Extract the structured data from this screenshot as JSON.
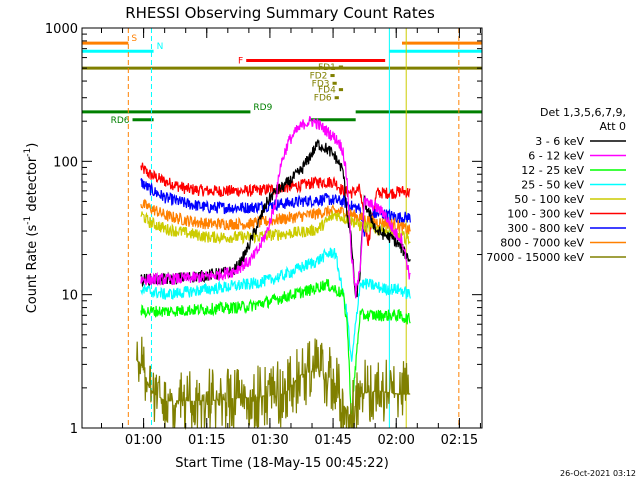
{
  "chart_data": {
    "type": "line",
    "title": "RHESSI Observing Summary Count Rates",
    "xlabel": "Start Time (18-May-15 00:45:22)",
    "ylabel_main": "Count Rate (s",
    "ylabel_sup1": "-1",
    "ylabel_mid": " detector",
    "ylabel_sup2": "-1",
    "ylabel_end": ")",
    "y_scale": "log",
    "ylim": [
      1,
      1000
    ],
    "xlim_minutes": [
      0,
      95
    ],
    "x_ticks": [
      {
        "minute": 14.63,
        "label": "01:00"
      },
      {
        "minute": 29.63,
        "label": "01:15"
      },
      {
        "minute": 44.63,
        "label": "01:30"
      },
      {
        "minute": 59.63,
        "label": "01:45"
      },
      {
        "minute": 74.63,
        "label": "02:00"
      },
      {
        "minute": 89.63,
        "label": "02:15"
      }
    ],
    "y_ticks": [
      {
        "value": 1,
        "label": "1"
      },
      {
        "value": 10,
        "label": "10"
      },
      {
        "value": 100,
        "label": "100"
      },
      {
        "value": 1000,
        "label": "1000"
      }
    ],
    "legend": {
      "placement": "right",
      "header": [
        "Det 1,3,5,6,7,9,",
        "Att 0"
      ],
      "entries": [
        {
          "label": "3 - 6 keV",
          "color": "#000000"
        },
        {
          "label": "6 - 12 keV",
          "color": "#ff00ff"
        },
        {
          "label": "12 - 25 keV",
          "color": "#00ff00"
        },
        {
          "label": "25 - 50 keV",
          "color": "#00ffff"
        },
        {
          "label": "50 - 100 keV",
          "color": "#cccc00"
        },
        {
          "label": "100 - 300 keV",
          "color": "#ff0000"
        },
        {
          "label": "300 - 800 keV",
          "color": "#0000ff"
        },
        {
          "label": "800 - 7000 keV",
          "color": "#ff8000"
        },
        {
          "label": "7000 - 15000 keV",
          "color": "#808000"
        }
      ]
    },
    "series": [
      {
        "color": "#ff0000",
        "points": [
          [
            14,
            90
          ],
          [
            16,
            80
          ],
          [
            20,
            70
          ],
          [
            25,
            62
          ],
          [
            30,
            60
          ],
          [
            40,
            60
          ],
          [
            45,
            62
          ],
          [
            52,
            66
          ],
          [
            56,
            70
          ],
          [
            60,
            70
          ],
          [
            62,
            60
          ],
          [
            64,
            58
          ],
          [
            66,
            62
          ],
          [
            67,
            35
          ],
          [
            68,
            25
          ],
          [
            70,
            58
          ],
          [
            74,
            58
          ],
          [
            76,
            60
          ],
          [
            78,
            58
          ]
        ]
      },
      {
        "color": "#0000ff",
        "points": [
          [
            14,
            70
          ],
          [
            16,
            62
          ],
          [
            20,
            53
          ],
          [
            25,
            48
          ],
          [
            30,
            45
          ],
          [
            40,
            45
          ],
          [
            45,
            47
          ],
          [
            52,
            50
          ],
          [
            58,
            52
          ],
          [
            62,
            50
          ],
          [
            64,
            46
          ],
          [
            66,
            44
          ],
          [
            67,
            30
          ],
          [
            69,
            40
          ],
          [
            72,
            40
          ],
          [
            75,
            38
          ],
          [
            78,
            38
          ]
        ]
      },
      {
        "color": "#ff8000",
        "points": [
          [
            14,
            48
          ],
          [
            16,
            45
          ],
          [
            20,
            39
          ],
          [
            25,
            36
          ],
          [
            30,
            34
          ],
          [
            40,
            34
          ],
          [
            45,
            36
          ],
          [
            50,
            38
          ],
          [
            55,
            40
          ],
          [
            58,
            42
          ],
          [
            62,
            42
          ],
          [
            66,
            38
          ],
          [
            68,
            36
          ],
          [
            70,
            35
          ],
          [
            74,
            34
          ],
          [
            76,
            32
          ],
          [
            78,
            30
          ]
        ]
      },
      {
        "color": "#cccc00",
        "points": [
          [
            14,
            40
          ],
          [
            16,
            35
          ],
          [
            20,
            31
          ],
          [
            25,
            29
          ],
          [
            30,
            27
          ],
          [
            40,
            27
          ],
          [
            45,
            28
          ],
          [
            50,
            29
          ],
          [
            54,
            30
          ],
          [
            56,
            31
          ],
          [
            60,
            40
          ],
          [
            64,
            36
          ],
          [
            66,
            33
          ],
          [
            68,
            32
          ],
          [
            72,
            30
          ],
          [
            75,
            28
          ],
          [
            78,
            26
          ]
        ]
      },
      {
        "color": "#000000",
        "points": [
          [
            14,
            13
          ],
          [
            20,
            13
          ],
          [
            25,
            13.5
          ],
          [
            30,
            14
          ],
          [
            36,
            15
          ],
          [
            38,
            18
          ],
          [
            40,
            25
          ],
          [
            42,
            35
          ],
          [
            44,
            50
          ],
          [
            46,
            60
          ],
          [
            48,
            65
          ],
          [
            52,
            85
          ],
          [
            55,
            120
          ],
          [
            56,
            135
          ],
          [
            58,
            125
          ],
          [
            60,
            110
          ],
          [
            62,
            85
          ],
          [
            63,
            40
          ],
          [
            64,
            25
          ],
          [
            65,
            9
          ],
          [
            66,
            14
          ],
          [
            67,
            50
          ],
          [
            70,
            30
          ],
          [
            72,
            28
          ],
          [
            74,
            26
          ],
          [
            76,
            22
          ],
          [
            78,
            18
          ]
        ]
      },
      {
        "color": "#ff00ff",
        "points": [
          [
            14,
            13
          ],
          [
            20,
            13
          ],
          [
            28,
            13.5
          ],
          [
            32,
            14
          ],
          [
            36,
            15
          ],
          [
            40,
            18
          ],
          [
            42,
            22
          ],
          [
            44,
            30
          ],
          [
            46,
            50
          ],
          [
            47,
            90
          ],
          [
            49,
            140
          ],
          [
            51,
            170
          ],
          [
            53,
            195
          ],
          [
            55,
            200
          ],
          [
            57,
            180
          ],
          [
            59,
            160
          ],
          [
            61,
            140
          ],
          [
            62,
            120
          ],
          [
            63,
            70
          ],
          [
            64,
            20
          ],
          [
            65,
            10
          ],
          [
            66,
            15
          ],
          [
            67,
            50
          ],
          [
            70,
            45
          ],
          [
            72,
            40
          ],
          [
            74,
            30
          ],
          [
            76,
            26
          ],
          [
            78,
            13
          ]
        ]
      },
      {
        "color": "#00ffff",
        "points": [
          [
            14,
            11
          ],
          [
            20,
            10
          ],
          [
            25,
            10.5
          ],
          [
            30,
            11
          ],
          [
            35,
            11.5
          ],
          [
            40,
            12
          ],
          [
            45,
            13
          ],
          [
            48,
            14
          ],
          [
            52,
            16
          ],
          [
            56,
            18
          ],
          [
            58,
            20
          ],
          [
            60,
            21
          ],
          [
            61,
            15
          ],
          [
            62,
            10
          ],
          [
            63,
            7
          ],
          [
            64,
            3
          ],
          [
            65,
            6
          ],
          [
            66,
            12
          ],
          [
            68,
            12
          ],
          [
            72,
            11
          ],
          [
            75,
            11
          ],
          [
            78,
            10
          ]
        ]
      },
      {
        "color": "#00ff00",
        "points": [
          [
            14,
            7.5
          ],
          [
            20,
            7.5
          ],
          [
            30,
            7.8
          ],
          [
            36,
            8
          ],
          [
            40,
            8.2
          ],
          [
            45,
            9
          ],
          [
            50,
            10
          ],
          [
            55,
            11
          ],
          [
            58,
            12
          ],
          [
            60,
            11
          ],
          [
            62,
            10
          ],
          [
            63,
            6
          ],
          [
            64,
            1.2
          ],
          [
            65,
            3
          ],
          [
            66,
            7
          ],
          [
            68,
            7
          ],
          [
            72,
            7
          ],
          [
            75,
            7
          ],
          [
            78,
            6.5
          ]
        ]
      },
      {
        "color": "#808000",
        "points": [
          [
            13,
            3.2
          ],
          [
            14,
            3
          ],
          [
            15,
            2.5
          ],
          [
            16,
            2
          ],
          [
            17,
            1.8
          ],
          [
            20,
            1.6
          ],
          [
            30,
            1.6
          ],
          [
            40,
            1.7
          ],
          [
            48,
            1.8
          ],
          [
            52,
            2.5
          ],
          [
            56,
            2.8
          ],
          [
            58,
            2.5
          ],
          [
            60,
            2.2
          ],
          [
            61,
            1.8
          ],
          [
            62,
            1.5
          ],
          [
            64,
            1.2
          ],
          [
            66,
            1.8
          ],
          [
            70,
            1.9
          ],
          [
            75,
            1.8
          ],
          [
            78,
            1.8
          ]
        ]
      }
    ],
    "flags": [
      {
        "label": "S",
        "color": "#ff8000",
        "segments": [
          [
            0,
            11
          ],
          [
            76,
            95
          ]
        ],
        "value": 770
      },
      {
        "label": "N",
        "color": "#00ffff",
        "segments": [
          [
            0,
            17
          ],
          [
            73,
            95
          ]
        ],
        "value": 670
      },
      {
        "label": "F",
        "color": "#ff0000",
        "segments": [
          [
            39,
            72
          ]
        ],
        "value": 570
      },
      {
        "label": "FD1",
        "color": "#808000",
        "segments": [
          [
            61,
            62
          ]
        ],
        "value": 510
      },
      {
        "label": "FD2",
        "color": "#808000",
        "segments": [
          [
            59,
            60
          ]
        ],
        "value": 440
      },
      {
        "label": "FD3",
        "color": "#808000",
        "segments": [
          [
            59.5,
            60.5
          ]
        ],
        "value": 385
      },
      {
        "label": "FD4",
        "color": "#808000",
        "segments": [
          [
            61,
            62
          ]
        ],
        "value": 345
      },
      {
        "label": "FD6",
        "color": "#808000",
        "segments": [
          [
            60,
            61
          ]
        ],
        "value": 300
      },
      {
        "label": "RD9",
        "color": "#008000",
        "segments": [
          [
            0,
            40
          ],
          [
            65,
            95
          ]
        ],
        "value": 235
      },
      {
        "label": "RD6",
        "color": "#008000",
        "segments": [
          [
            12,
            17
          ]
        ],
        "value": 205
      },
      {
        "label": "",
        "color": "#808000",
        "segments": [
          [
            0,
            95
          ]
        ],
        "value": 500
      },
      {
        "label": "",
        "color": "#008000",
        "segments": [
          [
            54,
            65
          ]
        ],
        "value": 205
      }
    ],
    "vertical_lines": [
      {
        "minute": 11,
        "color": "#ff8000",
        "style": "dashed"
      },
      {
        "minute": 16.5,
        "color": "#00ffff",
        "style": "dashed"
      },
      {
        "minute": 73,
        "color": "#00ffff",
        "style": "solid"
      },
      {
        "minute": 77,
        "color": "#cccc00",
        "style": "solid"
      },
      {
        "minute": 89.5,
        "color": "#ff8000",
        "style": "dashed"
      }
    ]
  },
  "footer": {
    "timestamp": "26-Oct-2021 03:12"
  }
}
